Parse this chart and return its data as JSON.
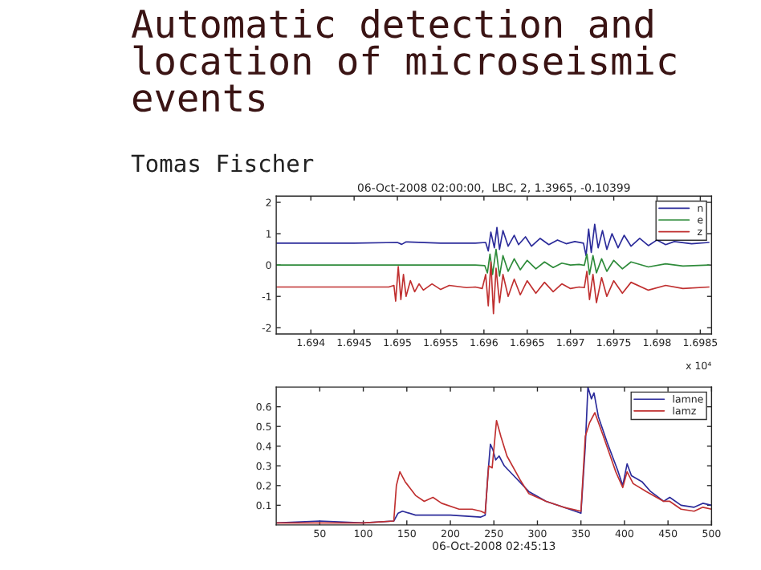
{
  "chart_data": [
    {
      "type": "line",
      "title": "06-Oct-2008 02:00:00,  LBC, 2, 1.3965, -0.10399",
      "annotations": [
        "Automatic detection and location of microseismic events",
        "Tomas Fischer",
        "x 10⁴"
      ],
      "xlim": [
        1.6936,
        1.69863
      ],
      "xticks": [
        {
          "value": 1.694,
          "label": "1.694"
        },
        {
          "value": 1.6945,
          "label": "1.6945"
        },
        {
          "value": 1.695,
          "label": "1.695"
        },
        {
          "value": 1.6955,
          "label": "1.6955"
        },
        {
          "value": 1.696,
          "label": "1.696"
        },
        {
          "value": 1.6965,
          "label": "1.6965"
        },
        {
          "value": 1.697,
          "label": "1.697"
        },
        {
          "value": 1.6975,
          "label": "1.6975"
        },
        {
          "value": 1.698,
          "label": "1.698"
        },
        {
          "value": 1.6985,
          "label": "1.6985"
        }
      ],
      "ylim": [
        -2.2,
        2.2
      ],
      "yticks": [
        -2,
        -1,
        0,
        1,
        2
      ],
      "grid": false,
      "legend": "top right",
      "marker": "none",
      "line_style": "solid",
      "series": [
        {
          "name": "n",
          "color": "#2b2b9a",
          "x": [
            1.6936,
            1.6945,
            1.695,
            1.69505,
            1.6951,
            1.6955,
            1.6959,
            1.69602,
            1.69605,
            1.69608,
            1.69612,
            1.69615,
            1.69618,
            1.69622,
            1.69628,
            1.69635,
            1.6964,
            1.69648,
            1.69655,
            1.69665,
            1.69675,
            1.69685,
            1.69695,
            1.69705,
            1.69715,
            1.69718,
            1.69721,
            1.69724,
            1.69728,
            1.69732,
            1.69737,
            1.69742,
            1.69748,
            1.69755,
            1.69762,
            1.6977,
            1.6978,
            1.6979,
            1.698,
            1.6981,
            1.6982,
            1.6984,
            1.6986
          ],
          "values": [
            0.7,
            0.7,
            0.72,
            0.66,
            0.74,
            0.7,
            0.7,
            0.72,
            0.45,
            1.05,
            0.55,
            1.2,
            0.5,
            1.1,
            0.6,
            0.95,
            0.65,
            0.9,
            0.6,
            0.85,
            0.65,
            0.8,
            0.68,
            0.75,
            0.7,
            0.3,
            1.15,
            0.4,
            1.3,
            0.55,
            1.1,
            0.5,
            1.0,
            0.55,
            0.95,
            0.6,
            0.85,
            0.62,
            0.8,
            0.65,
            0.75,
            0.68,
            0.72
          ]
        },
        {
          "name": "e",
          "color": "#2e8b3a",
          "x": [
            1.6936,
            1.6959,
            1.69601,
            1.69604,
            1.69607,
            1.6961,
            1.69614,
            1.69618,
            1.69622,
            1.69628,
            1.69635,
            1.69642,
            1.6965,
            1.6966,
            1.6967,
            1.6968,
            1.6969,
            1.697,
            1.6971,
            1.69716,
            1.69719,
            1.69722,
            1.69726,
            1.6973,
            1.69736,
            1.69742,
            1.6975,
            1.6976,
            1.6977,
            1.6979,
            1.6981,
            1.6983,
            1.6986
          ],
          "values": [
            0,
            0,
            -0.02,
            -0.25,
            0.35,
            -0.3,
            0.5,
            -0.35,
            0.3,
            -0.2,
            0.2,
            -0.15,
            0.15,
            -0.12,
            0.1,
            -0.08,
            0.06,
            0,
            0.02,
            -0.01,
            0.35,
            -0.3,
            0.3,
            -0.25,
            0.2,
            -0.2,
            0.15,
            -0.12,
            0.1,
            -0.06,
            0.04,
            -0.03,
            0
          ]
        },
        {
          "name": "z",
          "color": "#c03030",
          "x": [
            1.6936,
            1.6949,
            1.69496,
            1.69498,
            1.69501,
            1.69504,
            1.69507,
            1.6951,
            1.69515,
            1.6952,
            1.69525,
            1.6953,
            1.6954,
            1.6955,
            1.6956,
            1.6958,
            1.6959,
            1.69598,
            1.69602,
            1.69605,
            1.69608,
            1.69611,
            1.69614,
            1.69618,
            1.69622,
            1.69628,
            1.69635,
            1.69642,
            1.6965,
            1.6966,
            1.6967,
            1.6968,
            1.6969,
            1.697,
            1.6971,
            1.69716,
            1.69719,
            1.69722,
            1.69726,
            1.6973,
            1.69736,
            1.69742,
            1.6975,
            1.6976,
            1.6977,
            1.6979,
            1.6981,
            1.6983,
            1.6986
          ],
          "values": [
            -0.7,
            -0.7,
            -0.65,
            -1.15,
            -0.05,
            -1.1,
            -0.3,
            -1.0,
            -0.5,
            -0.85,
            -0.6,
            -0.8,
            -0.6,
            -0.78,
            -0.65,
            -0.72,
            -0.7,
            -0.75,
            -0.3,
            -1.3,
            0.1,
            -1.55,
            -0.1,
            -1.2,
            -0.3,
            -1.0,
            -0.45,
            -0.95,
            -0.5,
            -0.9,
            -0.55,
            -0.85,
            -0.6,
            -0.75,
            -0.7,
            -0.72,
            -0.2,
            -1.1,
            -0.3,
            -1.2,
            -0.4,
            -1.0,
            -0.5,
            -0.9,
            -0.55,
            -0.8,
            -0.65,
            -0.75,
            -0.7
          ]
        }
      ]
    },
    {
      "type": "line",
      "xlabel": "06-Oct-2008 02:45:13",
      "xlim": [
        0,
        500
      ],
      "xticks": [
        50,
        100,
        150,
        200,
        250,
        300,
        350,
        400,
        450,
        500
      ],
      "ylim": [
        0,
        0.7
      ],
      "yticks": [
        0.1,
        0.2,
        0.3,
        0.4,
        0.5,
        0.6
      ],
      "grid": false,
      "legend": "top right",
      "marker": "none",
      "line_style": "solid",
      "series": [
        {
          "name": "lamne",
          "color": "#2b2b9a",
          "x": [
            0,
            50,
            100,
            135,
            140,
            145,
            160,
            200,
            235,
            240,
            243,
            246,
            249,
            252,
            256,
            262,
            275,
            290,
            310,
            330,
            350,
            355,
            358,
            362,
            365,
            370,
            380,
            392,
            398,
            403,
            408,
            420,
            430,
            445,
            452,
            465,
            480,
            490,
            500
          ],
          "values": [
            0.01,
            0.02,
            0.01,
            0.02,
            0.06,
            0.07,
            0.05,
            0.05,
            0.04,
            0.05,
            0.25,
            0.41,
            0.38,
            0.33,
            0.35,
            0.3,
            0.24,
            0.17,
            0.12,
            0.09,
            0.06,
            0.4,
            0.7,
            0.64,
            0.67,
            0.55,
            0.42,
            0.28,
            0.2,
            0.31,
            0.25,
            0.22,
            0.17,
            0.12,
            0.14,
            0.1,
            0.09,
            0.11,
            0.1
          ]
        },
        {
          "name": "lamz",
          "color": "#c03030",
          "x": [
            0,
            100,
            135,
            138,
            142,
            148,
            160,
            170,
            180,
            190,
            210,
            225,
            235,
            240,
            244,
            248,
            253,
            258,
            265,
            280,
            290,
            310,
            330,
            350,
            355,
            360,
            366,
            375,
            390,
            398,
            403,
            410,
            425,
            445,
            452,
            465,
            480,
            490,
            500
          ],
          "values": [
            0.01,
            0.01,
            0.02,
            0.2,
            0.27,
            0.22,
            0.15,
            0.12,
            0.14,
            0.11,
            0.08,
            0.08,
            0.07,
            0.06,
            0.3,
            0.29,
            0.53,
            0.45,
            0.35,
            0.23,
            0.16,
            0.12,
            0.09,
            0.07,
            0.45,
            0.52,
            0.57,
            0.46,
            0.27,
            0.19,
            0.27,
            0.21,
            0.17,
            0.12,
            0.12,
            0.08,
            0.07,
            0.09,
            0.08
          ]
        }
      ]
    }
  ]
}
